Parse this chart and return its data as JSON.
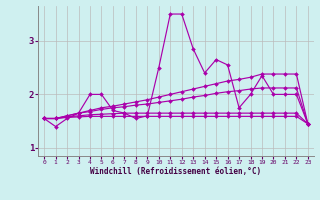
{
  "xlabel": "Windchill (Refroidissement éolien,°C)",
  "bg_color": "#cff0f0",
  "grid_color": "#bbbbbb",
  "line_color": "#aa00aa",
  "xlim": [
    -0.5,
    23.5
  ],
  "ylim": [
    0.85,
    3.65
  ],
  "yticks": [
    1,
    2,
    3
  ],
  "xticks": [
    0,
    1,
    2,
    3,
    4,
    5,
    6,
    7,
    8,
    9,
    10,
    11,
    12,
    13,
    14,
    15,
    16,
    17,
    18,
    19,
    20,
    21,
    22,
    23
  ],
  "lines": [
    [
      1.55,
      1.4,
      1.55,
      1.65,
      2.0,
      2.0,
      1.7,
      1.65,
      1.55,
      1.6,
      2.5,
      3.5,
      3.5,
      2.85,
      2.4,
      2.65,
      2.55,
      1.75,
      2.0,
      2.35,
      2.0,
      2.0,
      2.0,
      1.45
    ],
    [
      1.55,
      1.55,
      1.6,
      1.65,
      1.7,
      1.75,
      1.78,
      1.82,
      1.86,
      1.9,
      1.95,
      2.0,
      2.05,
      2.1,
      2.15,
      2.2,
      2.25,
      2.28,
      2.32,
      2.38,
      2.38,
      2.38,
      2.38,
      1.45
    ],
    [
      1.55,
      1.55,
      1.6,
      1.65,
      1.68,
      1.72,
      1.75,
      1.77,
      1.8,
      1.82,
      1.85,
      1.88,
      1.91,
      1.95,
      1.98,
      2.02,
      2.05,
      2.07,
      2.1,
      2.12,
      2.12,
      2.12,
      2.12,
      1.45
    ],
    [
      1.55,
      1.55,
      1.58,
      1.6,
      1.62,
      1.63,
      1.64,
      1.65,
      1.65,
      1.65,
      1.65,
      1.65,
      1.65,
      1.65,
      1.65,
      1.65,
      1.65,
      1.65,
      1.65,
      1.65,
      1.65,
      1.65,
      1.65,
      1.45
    ],
    [
      1.55,
      1.55,
      1.57,
      1.58,
      1.59,
      1.59,
      1.59,
      1.59,
      1.59,
      1.59,
      1.59,
      1.59,
      1.59,
      1.59,
      1.59,
      1.59,
      1.59,
      1.59,
      1.59,
      1.59,
      1.59,
      1.59,
      1.59,
      1.45
    ]
  ]
}
